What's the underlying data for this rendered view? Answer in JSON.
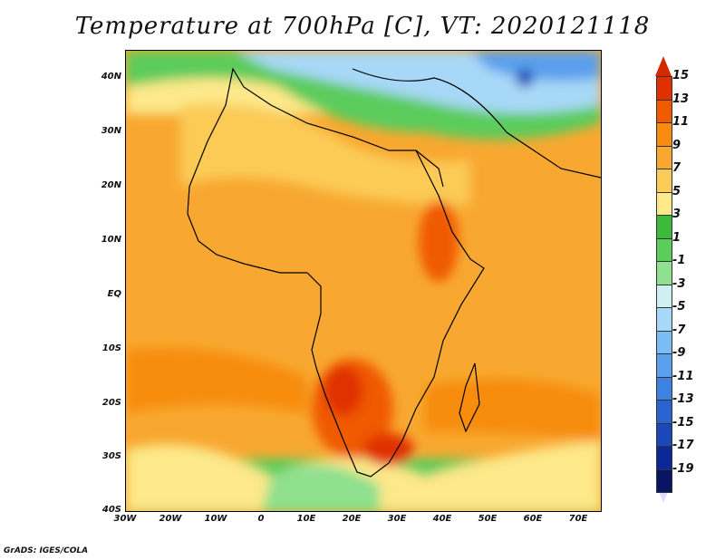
{
  "title": "Temperature at 700hPa [C], VT: 2020121118",
  "credit": "GrADS: IGES/COLA",
  "lat_labels": [
    "40N",
    "30N",
    "20N",
    "10N",
    "EQ",
    "10S",
    "20S",
    "30S",
    "40S"
  ],
  "lon_labels": [
    "30W",
    "20W",
    "10W",
    "0",
    "10E",
    "20E",
    "30E",
    "40E",
    "50E",
    "60E",
    "70E"
  ],
  "colorbar": {
    "labels": [
      "15",
      "13",
      "11",
      "9",
      "7",
      "5",
      "3",
      "1",
      "-1",
      "-3",
      "-5",
      "-7",
      "-9",
      "-11",
      "-13",
      "-15",
      "-17",
      "-19"
    ],
    "colors": [
      "#e03000",
      "#f05a00",
      "#f78c10",
      "#f8a830",
      "#fbcb57",
      "#fde88a",
      "#3cba3c",
      "#5ccc5c",
      "#8fe08f",
      "#cff0f0",
      "#a8d8f8",
      "#7cbcf4",
      "#5aa0ec",
      "#3c82e0",
      "#2a64d0",
      "#1a48b8",
      "#0c2896",
      "#081464"
    ],
    "over_color": "#d42800",
    "under_color": "#dcdcff"
  },
  "chart_data": {
    "type": "heatmap",
    "title": "Temperature at 700hPa [C], VT: 2020121118",
    "xlim": [
      -30,
      75
    ],
    "ylim": [
      -40,
      45
    ],
    "x_ticks": [
      "30W",
      "20W",
      "10W",
      "0",
      "10E",
      "20E",
      "30E",
      "40E",
      "50E",
      "60E",
      "70E"
    ],
    "y_ticks": [
      "40N",
      "30N",
      "20N",
      "10N",
      "EQ",
      "10S",
      "20S",
      "30S",
      "40S"
    ],
    "colorbar_levels": [
      15,
      13,
      11,
      9,
      7,
      5,
      3,
      1,
      -1,
      -3,
      -5,
      -7,
      -9,
      -11,
      -13,
      -15,
      -17,
      -19
    ]
  }
}
